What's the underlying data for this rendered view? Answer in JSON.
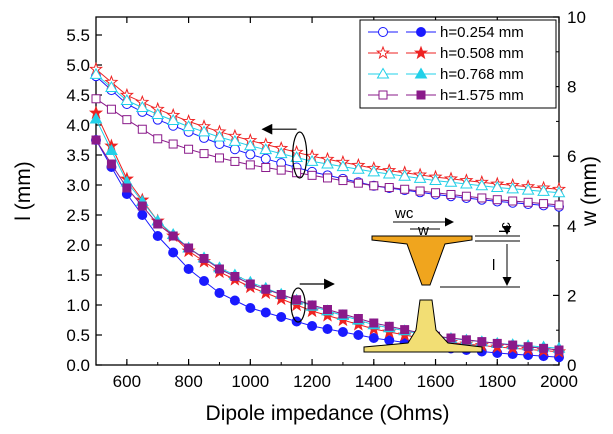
{
  "chart_data": {
    "type": "line",
    "xlabel": "Dipole impedance (Ohms)",
    "ylabel_left": "l (mm)",
    "ylabel_right": "w (mm)",
    "xlim": [
      500,
      2000
    ],
    "ylim_left": [
      0.0,
      5.8
    ],
    "ylim_right": [
      0,
      10
    ],
    "x_ticks": [
      600,
      800,
      1000,
      1200,
      1400,
      1600,
      1800,
      2000
    ],
    "y_ticks_left": [
      0.0,
      0.5,
      1.0,
      1.5,
      2.0,
      2.5,
      3.0,
      3.5,
      4.0,
      4.5,
      5.0,
      5.5
    ],
    "y_ticks_right": [
      0,
      2,
      4,
      6,
      8,
      10
    ],
    "legend_position": "top-right",
    "legend": [
      {
        "label": "h=0.254 mm",
        "color": "#1a1aff"
      },
      {
        "label": "h=0.508 mm",
        "color": "#ee2222"
      },
      {
        "label": "h=0.768 mm",
        "color": "#22d0e8"
      },
      {
        "label": "h=1.575 mm",
        "color": "#8a1a8a"
      }
    ],
    "series": [
      {
        "name": "h=0.254 mm",
        "axis": "right",
        "color": "#1a1aff",
        "marker": "circle",
        "filled": false,
        "x": [
          500,
          600,
          700,
          800,
          900,
          1000,
          1200,
          1400,
          1600,
          1800,
          2000
        ],
        "values": [
          8.3,
          7.5,
          7.05,
          6.7,
          6.35,
          6.05,
          5.55,
          5.15,
          4.9,
          4.7,
          4.55
        ]
      },
      {
        "name": "h=0.508 mm",
        "axis": "right",
        "color": "#ee2222",
        "marker": "star",
        "filled": false,
        "x": [
          500,
          600,
          700,
          800,
          900,
          1000,
          1200,
          1400,
          1600,
          1800,
          2000
        ],
        "values": [
          8.5,
          7.75,
          7.35,
          7.0,
          6.7,
          6.45,
          6.0,
          5.65,
          5.4,
          5.2,
          5.05
        ]
      },
      {
        "name": "h=0.768 mm",
        "axis": "right",
        "color": "#22d0e8",
        "marker": "triangle",
        "filled": false,
        "x": [
          500,
          600,
          700,
          800,
          900,
          1000,
          1200,
          1400,
          1600,
          1800,
          2000
        ],
        "values": [
          8.35,
          7.6,
          7.2,
          6.85,
          6.55,
          6.3,
          5.85,
          5.55,
          5.3,
          5.1,
          4.95
        ]
      },
      {
        "name": "h=1.575 mm",
        "axis": "right",
        "color": "#8a1a8a",
        "marker": "square",
        "filled": false,
        "x": [
          500,
          600,
          700,
          800,
          900,
          1000,
          1200,
          1400,
          1600,
          1800,
          2000
        ],
        "values": [
          7.65,
          7.05,
          6.5,
          6.2,
          5.95,
          5.75,
          5.45,
          5.15,
          4.95,
          4.75,
          4.6
        ]
      },
      {
        "name": "h=0.254 mm",
        "axis": "left",
        "color": "#1a1aff",
        "marker": "circle",
        "filled": true,
        "x": [
          500,
          600,
          700,
          800,
          900,
          1000,
          1200,
          1400,
          1600,
          1800,
          2000
        ],
        "values": [
          3.75,
          2.85,
          2.15,
          1.6,
          1.2,
          0.95,
          0.65,
          0.45,
          0.3,
          0.2,
          0.13
        ]
      },
      {
        "name": "h=0.508 mm",
        "axis": "left",
        "color": "#ee2222",
        "marker": "star",
        "filled": true,
        "x": [
          500,
          600,
          700,
          800,
          900,
          1000,
          1200,
          1400,
          1600,
          1800,
          2000
        ],
        "values": [
          4.2,
          3.1,
          2.4,
          1.9,
          1.55,
          1.3,
          0.9,
          0.6,
          0.4,
          0.3,
          0.22
        ]
      },
      {
        "name": "h=0.768 mm",
        "axis": "left",
        "color": "#22d0e8",
        "marker": "triangle",
        "filled": true,
        "x": [
          500,
          600,
          700,
          800,
          900,
          1000,
          1200,
          1400,
          1600,
          1800,
          2000
        ],
        "values": [
          4.1,
          3.05,
          2.4,
          1.95,
          1.62,
          1.38,
          0.98,
          0.67,
          0.47,
          0.36,
          0.28
        ]
      },
      {
        "name": "h=1.575 mm",
        "axis": "left",
        "color": "#8a1a8a",
        "marker": "square",
        "filled": true,
        "x": [
          500,
          600,
          700,
          800,
          900,
          1000,
          1200,
          1400,
          1600,
          1800,
          2000
        ],
        "values": [
          3.75,
          2.95,
          2.35,
          1.95,
          1.6,
          1.35,
          1.0,
          0.7,
          0.48,
          0.36,
          0.25
        ]
      }
    ],
    "inset_labels": {
      "wc": "wc",
      "w": "w",
      "lc": "lc",
      "l": "l"
    }
  }
}
